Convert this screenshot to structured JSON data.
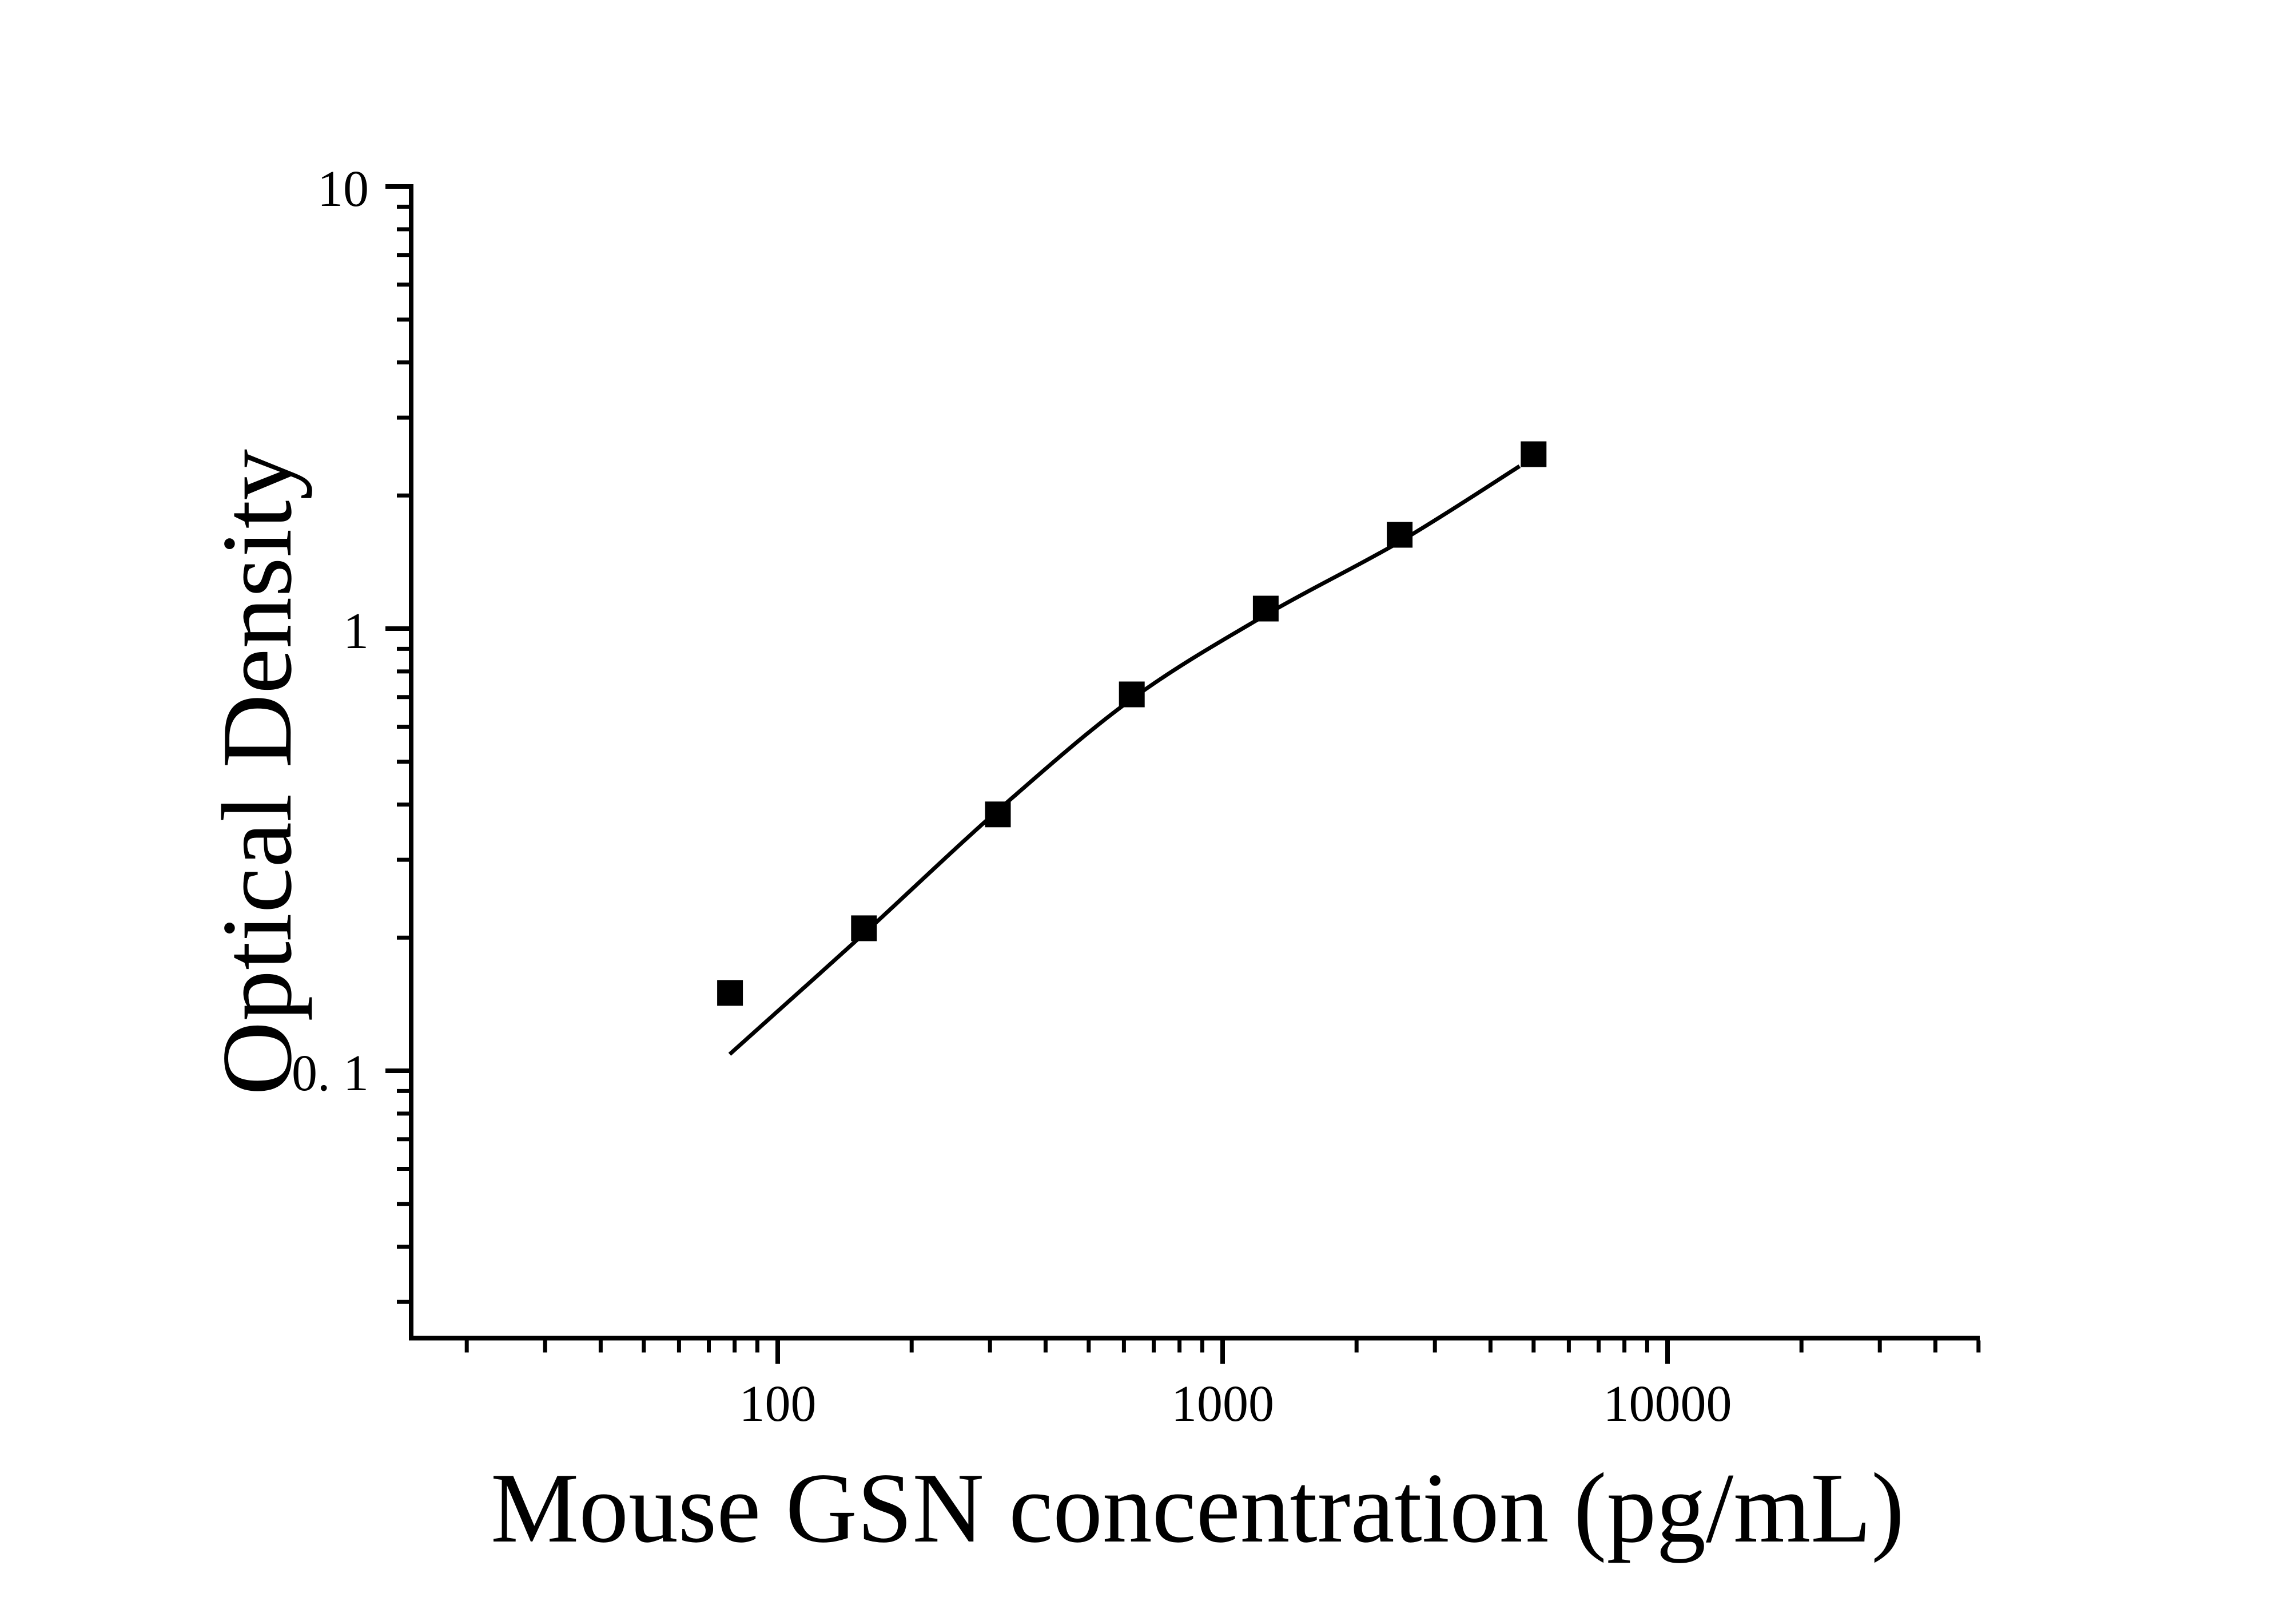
{
  "figure": {
    "background_color": "#ffffff",
    "ink_color": "#000000"
  },
  "chart_data": {
    "type": "scatter",
    "title": "",
    "xlabel": "Mouse GSN concentration (pg/mL)",
    "ylabel": "Optical Density",
    "x_scale": "log",
    "y_scale": "log",
    "grid": false,
    "legend": false,
    "marker": "filled-square",
    "marker_color": "#000000",
    "line_color": "#000000",
    "x_ticks_major": [
      100,
      1000,
      10000
    ],
    "x_tick_labels": [
      "100",
      "1000",
      "10000"
    ],
    "y_ticks_major": [
      10,
      1,
      0.1
    ],
    "y_tick_labels": [
      "10",
      "1",
      "0. 1"
    ],
    "x_range": [
      15,
      50000
    ],
    "y_range": [
      0.025,
      10
    ],
    "points": [
      {
        "x": 78.125,
        "y": 0.15
      },
      {
        "x": 156.25,
        "y": 0.21
      },
      {
        "x": 312.5,
        "y": 0.38
      },
      {
        "x": 625,
        "y": 0.71
      },
      {
        "x": 1250,
        "y": 1.11
      },
      {
        "x": 2500,
        "y": 1.63
      },
      {
        "x": 5000,
        "y": 2.48
      }
    ],
    "fit_curve": [
      [
        78,
        0.109
      ],
      [
        156,
        0.204
      ],
      [
        312.5,
        0.388
      ],
      [
        625,
        0.693
      ],
      [
        1250,
        1.074
      ],
      [
        2500,
        1.572
      ],
      [
        4650,
        2.33
      ]
    ]
  }
}
